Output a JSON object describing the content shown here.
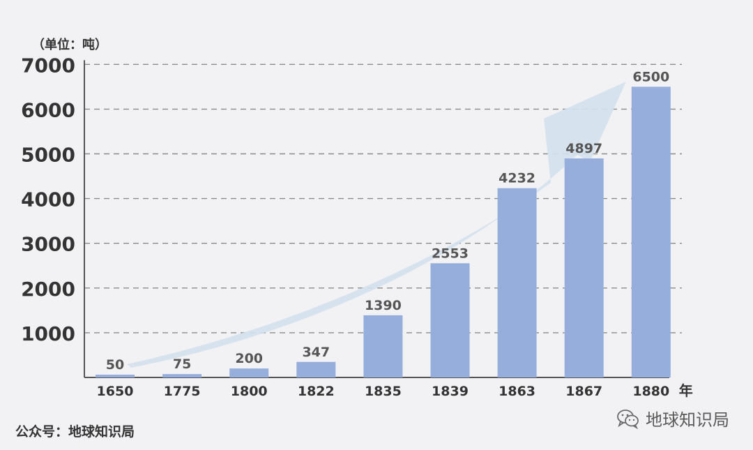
{
  "chart_data": {
    "type": "bar",
    "unit_label": "（单位：吨）",
    "year_suffix": "年",
    "categories": [
      "1650",
      "1775",
      "1800",
      "1822",
      "1835",
      "1839",
      "1863",
      "1867",
      "1880"
    ],
    "values": [
      50,
      75,
      200,
      347,
      1390,
      2553,
      4232,
      4897,
      6500
    ],
    "y_ticks": [
      "1000",
      "2000",
      "3000",
      "4000",
      "5000",
      "6000",
      "7000"
    ],
    "ylim": [
      0,
      7000
    ],
    "grid": true,
    "trend_arrow": true,
    "bar_color": "#95aedc",
    "arrow_color": "#d3e1ee"
  },
  "footer": {
    "source": "公众号：地球知识局",
    "brand": "地球知识局"
  },
  "icons": {
    "brand": "wechat-icon"
  }
}
